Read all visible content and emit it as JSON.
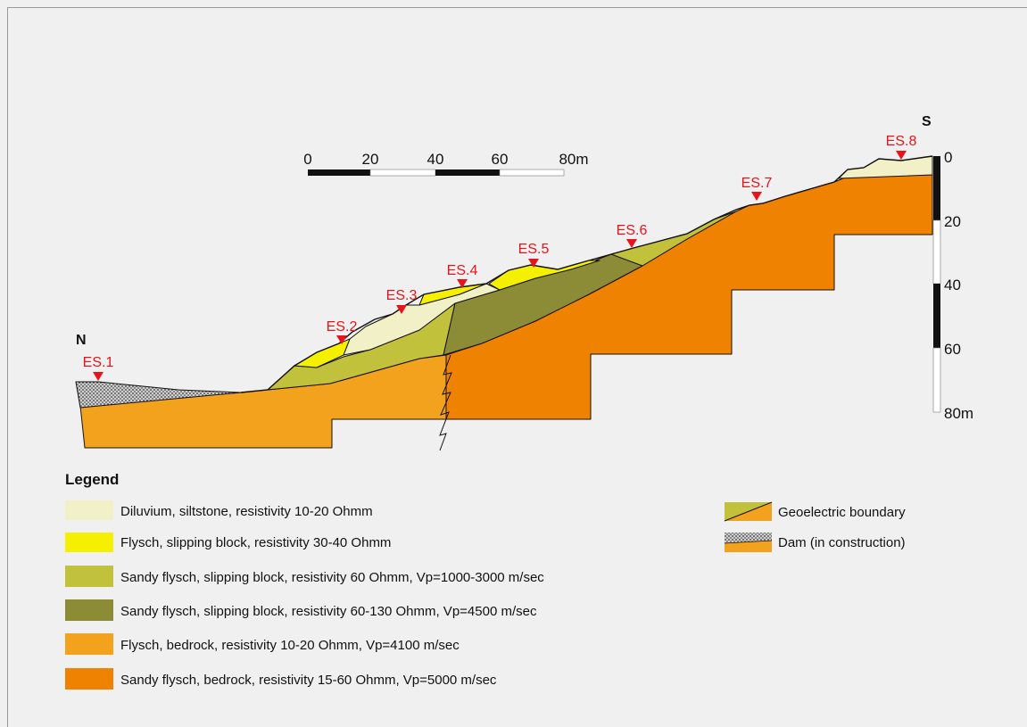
{
  "labels": {
    "north": "N",
    "south": "S"
  },
  "stations": [
    "ES.1",
    "ES.2",
    "ES.3",
    "ES.4",
    "ES.5",
    "ES.6",
    "ES.7",
    "ES.8"
  ],
  "scale_horizontal": [
    "0",
    "20",
    "40",
    "60",
    "80m"
  ],
  "scale_vertical": [
    "0",
    "20",
    "40",
    "60",
    "80m"
  ],
  "legend": {
    "title": "Legend",
    "items": [
      "Diluvium, siltstone, resistivity 10-20 Ohmm",
      "Flysch, slipping block, resistivity 30-40 Ohmm",
      "Sandy flysch, slipping block, resistivity 60 Ohmm, Vp=1000-3000 m/sec",
      "Sandy flysch, slipping block, resistivity 60-130 Ohmm, Vp=4500 m/sec",
      "Flysch, bedrock, resistivity 10-20 Ohmm, Vp=4100 m/sec",
      "Sandy flysch, bedrock, resistivity 15-60 Ohmm, Vp=5000 m/sec"
    ],
    "extra": [
      "Geoelectric boundary",
      "Dam (in construction)"
    ]
  }
}
